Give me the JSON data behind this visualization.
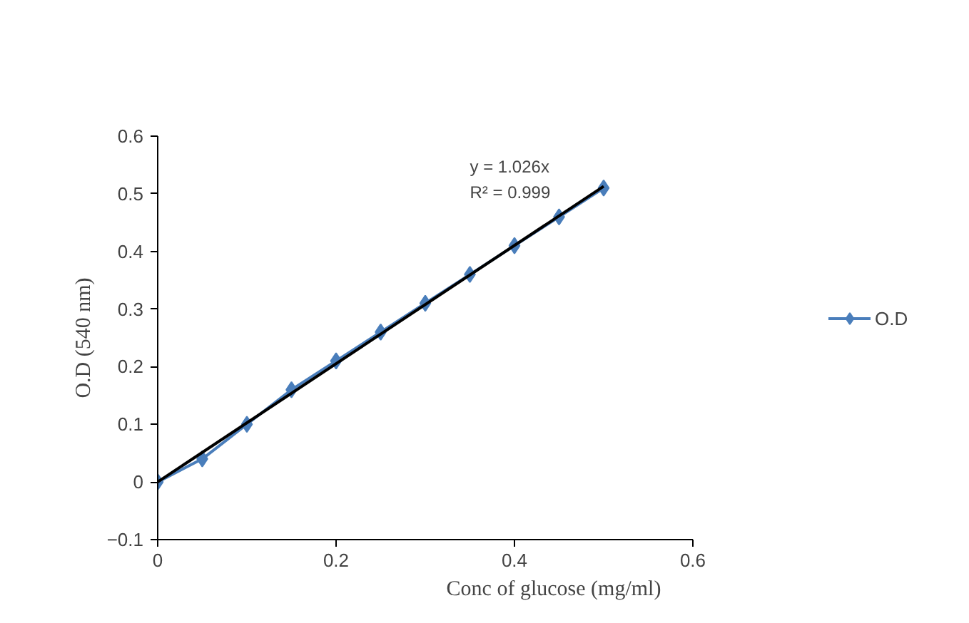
{
  "chart_data": {
    "type": "line",
    "xlabel": "Conc of glucose (mg/ml)",
    "ylabel": "O.D (540 nm)",
    "series": [
      {
        "name": "O.D",
        "color": "#4a7ebb",
        "marker": "diamond",
        "x": [
          0,
          0.05,
          0.1,
          0.15,
          0.2,
          0.25,
          0.3,
          0.35,
          0.4,
          0.45,
          0.5
        ],
        "values": [
          0,
          0.04,
          0.1,
          0.16,
          0.21,
          0.26,
          0.31,
          0.36,
          0.41,
          0.46,
          0.51
        ]
      },
      {
        "type": "line",
        "color": "#000000",
        "marker": "none",
        "x": [
          0,
          0.5
        ],
        "values": [
          0,
          0.513
        ]
      }
    ],
    "annotations": [
      "y = 1.026x",
      "R² = 0.999"
    ],
    "xlim": [
      0,
      0.6
    ],
    "xticks": [
      0,
      0.2,
      0.4,
      0.6
    ],
    "ylim": [
      -0.1,
      0.6
    ],
    "yticks": [
      -0.1,
      0,
      0.1,
      0.2,
      0.3,
      0.4,
      0.5,
      0.6
    ],
    "grid": false,
    "legend": "right"
  }
}
